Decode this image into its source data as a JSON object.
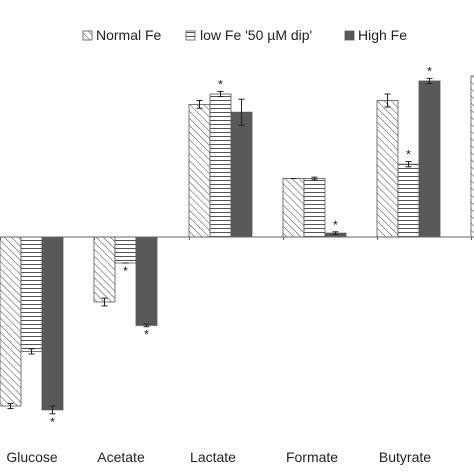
{
  "chart_data": {
    "type": "bar",
    "title": "",
    "xlabel": "",
    "ylabel": "",
    "categories": [
      "Glucose",
      "Acetate",
      "Lactate",
      "Formate",
      "Butyrate",
      ""
    ],
    "ylim": [
      -1.4,
      1.25
    ],
    "grid": false,
    "legend_position": "top",
    "series": [
      {
        "name": "Normal Fe",
        "pattern": "diagonal-hatch",
        "values": [
          -1.3,
          -0.5,
          1.02,
          0.45,
          1.05,
          null
        ],
        "errors": [
          0.02,
          0.03,
          0.03,
          0.0,
          0.05,
          null
        ],
        "significant": [
          false,
          false,
          false,
          false,
          false,
          false
        ]
      },
      {
        "name": "low Fe '50 µM dip'",
        "pattern": "horizontal-lines",
        "values": [
          -0.88,
          -0.2,
          1.1,
          0.45,
          0.56,
          null
        ],
        "errors": [
          0.02,
          0.0,
          0.02,
          0.01,
          0.02,
          null
        ],
        "significant": [
          false,
          true,
          true,
          false,
          true,
          false
        ]
      },
      {
        "name": "High Fe",
        "pattern": "solid-dark",
        "values": [
          -1.33,
          -0.68,
          0.96,
          0.03,
          1.2,
          null
        ],
        "errors": [
          0.03,
          0.01,
          0.1,
          0.01,
          0.02,
          null
        ],
        "significant": [
          true,
          true,
          false,
          true,
          true,
          false
        ]
      }
    ],
    "significance_marker": "*"
  },
  "colors": {
    "axis": "#666666",
    "bar_stroke": "#555555",
    "hatch": "#555555",
    "solid_fill": "#595959",
    "text": "#222222"
  }
}
